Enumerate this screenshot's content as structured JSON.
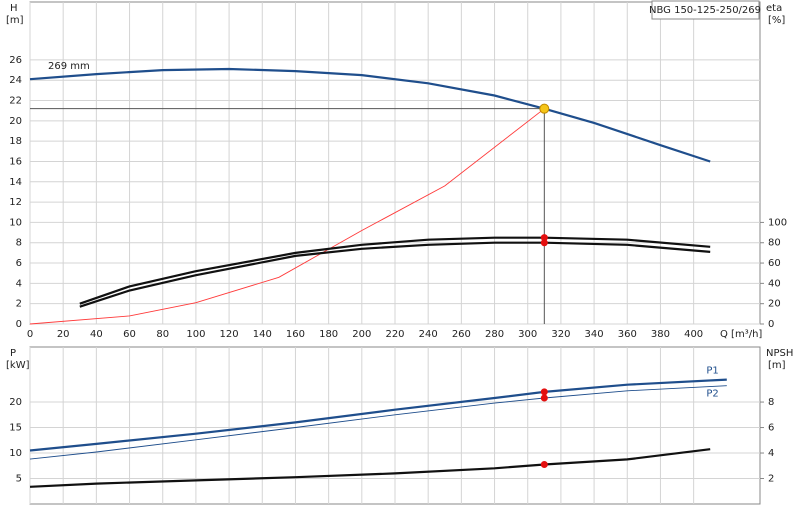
{
  "chart_data": [
    {
      "type": "line",
      "title": "NBG 150-125-250/269",
      "annotation": "269 mm",
      "ylabel": "H",
      "yunit": "[m]",
      "y2label": "eta",
      "y2unit": "[%]",
      "xlabel": "Q [m³/h]",
      "xlim": [
        0,
        440
      ],
      "xticks": [
        0,
        20,
        40,
        60,
        80,
        100,
        120,
        140,
        160,
        180,
        200,
        220,
        240,
        260,
        280,
        300,
        320,
        340,
        360,
        380,
        400
      ],
      "ylim": [
        0,
        31.7
      ],
      "yticks": [
        0,
        2,
        4,
        6,
        8,
        10,
        12,
        14,
        16,
        18,
        20,
        22,
        24,
        26
      ],
      "y2lim": [
        0,
        317
      ],
      "y2ticks": [
        0,
        20,
        40,
        60,
        80,
        100
      ],
      "grid": true,
      "series": [
        {
          "color": "#1f4e8c",
          "weight": "thick",
          "x": [
            0,
            40,
            80,
            120,
            160,
            200,
            240,
            280,
            310,
            340,
            380,
            410
          ],
          "values": [
            24.1,
            24.6,
            25.0,
            25.1,
            24.9,
            24.5,
            23.7,
            22.5,
            21.2,
            19.8,
            17.6,
            16.0
          ]
        },
        {
          "color": "#ff3b3b",
          "weight": "thin",
          "x": [
            0,
            60,
            100,
            150,
            200,
            250,
            310
          ],
          "values": [
            0,
            0.8,
            2.1,
            4.6,
            9.2,
            13.6,
            21.2
          ]
        },
        {
          "color": "#111111",
          "weight": "thick",
          "axis": "y2",
          "x": [
            30,
            60,
            100,
            160,
            200,
            240,
            280,
            310,
            360,
            410
          ],
          "values": [
            20,
            37,
            52,
            70,
            78,
            83,
            85,
            85,
            83,
            76
          ]
        },
        {
          "color": "#111111",
          "weight": "thick",
          "axis": "y2",
          "x": [
            30,
            60,
            100,
            160,
            200,
            240,
            280,
            310,
            360,
            410
          ],
          "values": [
            17,
            33,
            48,
            67,
            74,
            78,
            80,
            80,
            78,
            71
          ]
        }
      ],
      "points": [
        {
          "x": 310,
          "y": 21.2,
          "color": "#f5c518",
          "guide": true
        },
        {
          "x": 310,
          "y": 85,
          "axis": "y2",
          "color": "#e41010"
        },
        {
          "x": 310,
          "y": 80,
          "axis": "y2",
          "color": "#e41010"
        }
      ]
    },
    {
      "type": "line",
      "ylabel": "P",
      "yunit": "[kW]",
      "y2label": "NPSH",
      "y2unit": "[m]",
      "xlim": [
        0,
        440
      ],
      "xticks": [
        0,
        20,
        40,
        60,
        80,
        100,
        120,
        140,
        160,
        180,
        200,
        220,
        240,
        260,
        280,
        300,
        320,
        340,
        360,
        380,
        400
      ],
      "ylim": [
        0,
        30.8
      ],
      "yticks": [
        5,
        10,
        15,
        20
      ],
      "y2lim": [
        0,
        12.32
      ],
      "y2ticks": [
        2,
        4,
        6,
        8
      ],
      "grid": true,
      "series": [
        {
          "name": "P1",
          "color": "#1f4e8c",
          "weight": "thick",
          "x": [
            0,
            40,
            100,
            160,
            220,
            280,
            310,
            360,
            420
          ],
          "values": [
            10.5,
            11.8,
            13.8,
            16.0,
            18.5,
            20.8,
            22.0,
            23.4,
            24.4
          ]
        },
        {
          "name": "P2",
          "color": "#1f4e8c",
          "weight": "thin",
          "x": [
            0,
            40,
            100,
            160,
            220,
            280,
            310,
            360,
            420
          ],
          "values": [
            8.8,
            10.2,
            12.6,
            15.0,
            17.5,
            19.8,
            20.8,
            22.2,
            23.2
          ]
        },
        {
          "color": "#111111",
          "weight": "thick",
          "axis": "y2",
          "x": [
            0,
            40,
            100,
            160,
            220,
            280,
            310,
            360,
            410
          ],
          "values": [
            1.35,
            1.6,
            1.85,
            2.1,
            2.4,
            2.8,
            3.1,
            3.5,
            4.3
          ]
        }
      ],
      "points": [
        {
          "x": 310,
          "y": 22.0,
          "color": "#e41010"
        },
        {
          "x": 310,
          "y": 20.8,
          "color": "#e41010"
        },
        {
          "x": 310,
          "y": 3.1,
          "axis": "y2",
          "color": "#e41010"
        }
      ]
    }
  ]
}
